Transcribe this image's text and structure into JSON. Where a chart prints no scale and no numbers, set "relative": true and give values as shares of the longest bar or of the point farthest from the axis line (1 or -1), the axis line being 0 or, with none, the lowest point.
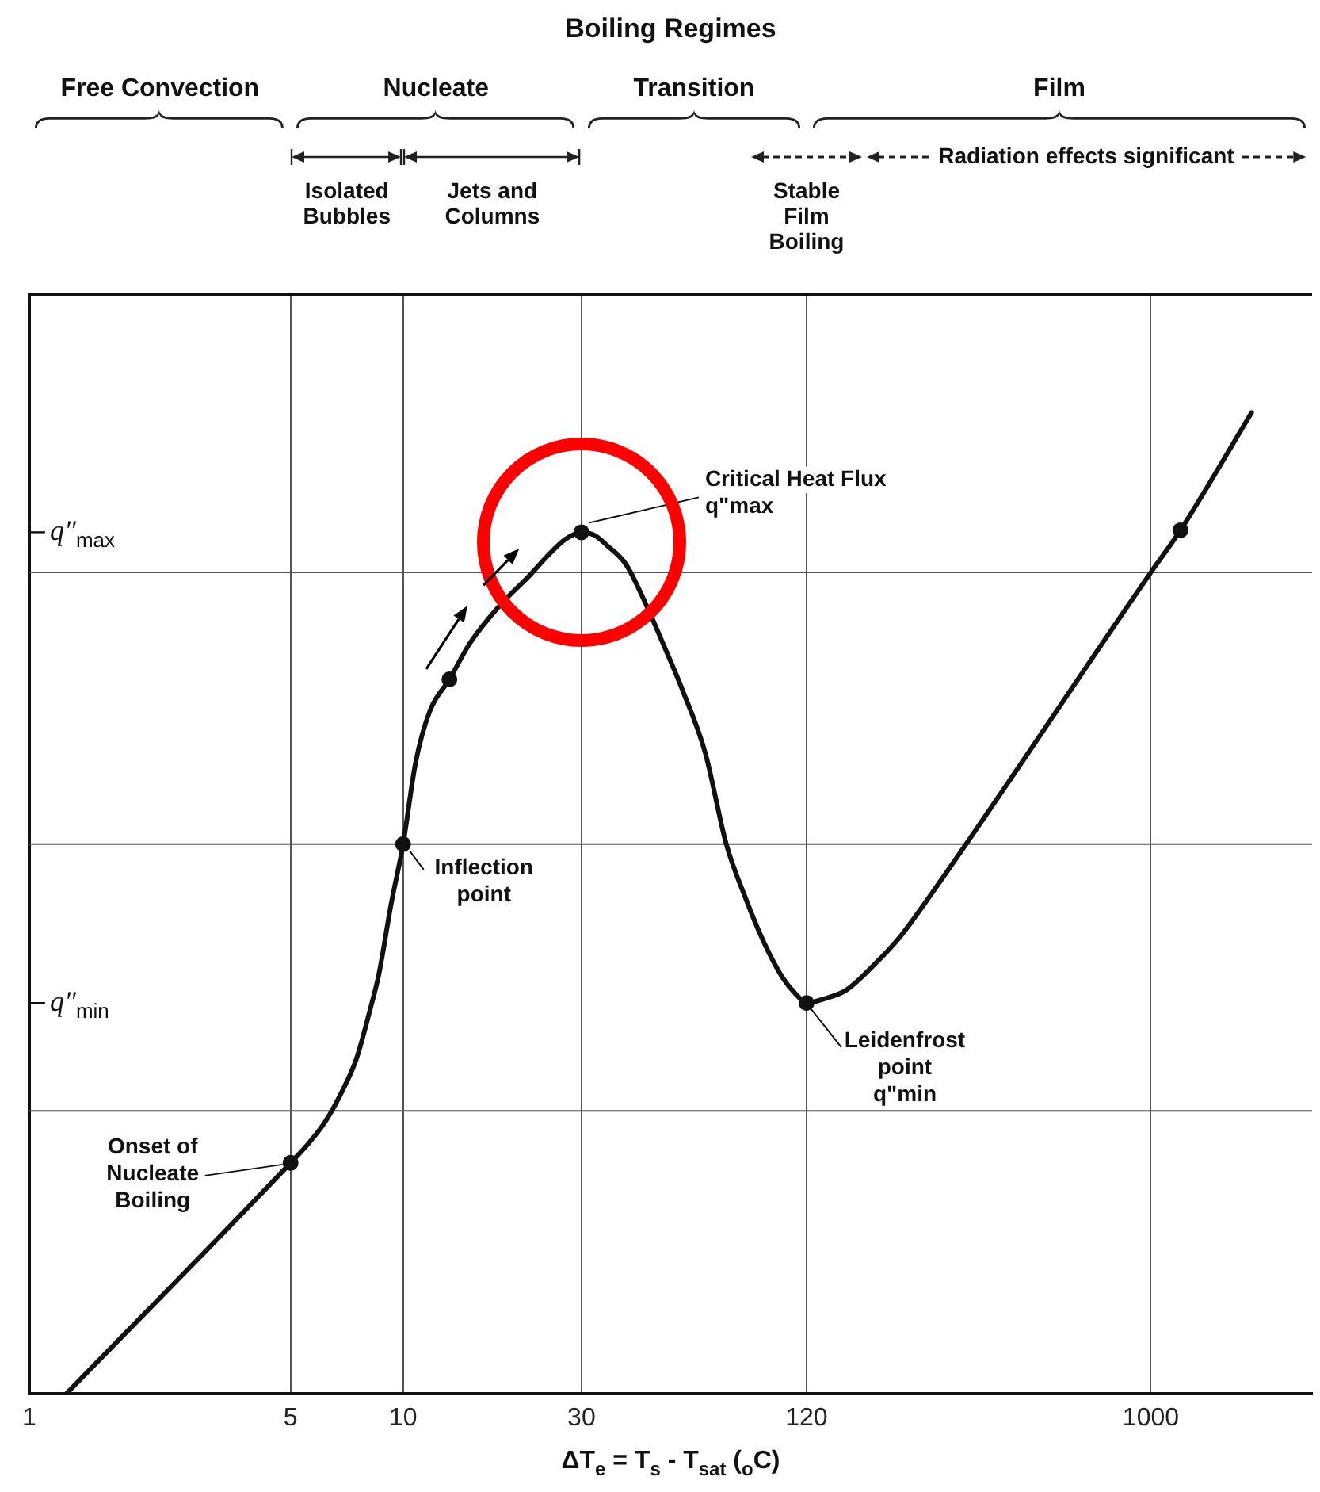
{
  "chart_data": {
    "type": "line",
    "title": "Boiling Regimes",
    "xlabel": "ΔT$_{e}$ = T$_{s}$ - T$_{sat}$ ($_{o}$C)",
    "relative": true,
    "log": "x",
    "xlim": [
      1,
      2700
    ],
    "xticks": [
      1,
      5,
      10,
      30,
      120,
      1000
    ],
    "grid": "x",
    "series": [
      {
        "color": "#111111",
        "marker": "none",
        "x": [
          1.26,
          5,
          5.56,
          6.19,
          6.89,
          7.5,
          8.17,
          8.61,
          9.29,
          10,
          10.8,
          11.8,
          13.3,
          15.1,
          18.1,
          21.8,
          24.5,
          27.2,
          30,
          32.5,
          35,
          39.5,
          44.2,
          49.5,
          55.9,
          64.3,
          73.2,
          82.6,
          92.5,
          103.5,
          113,
          120,
          133,
          153,
          182,
          214,
          250,
          1000,
          1200,
          1860
        ],
        "values": [
          0,
          0.235,
          0.254,
          0.277,
          0.309,
          0.341,
          0.392,
          0.427,
          0.499,
          0.56,
          0.643,
          0.696,
          0.728,
          0.765,
          0.803,
          0.834,
          0.855,
          0.871,
          0.878,
          0.875,
          0.865,
          0.845,
          0.808,
          0.765,
          0.717,
          0.653,
          0.56,
          0.504,
          0.459,
          0.424,
          0.406,
          0.398,
          0.402,
          0.411,
          0.437,
          0.466,
          0.501,
          0.837,
          0.88,
          1
        ]
      },
      {
        "type": "scatter",
        "color": "#111111",
        "marker": "circle",
        "x": [
          5,
          10,
          13.3,
          30,
          120,
          1200
        ],
        "values": [
          0.235,
          0.56,
          0.728,
          0.878,
          0.398,
          0.88
        ]
      }
    ],
    "ref_lines": [
      {
        "axis": "y",
        "value": 0.288,
        "color": "#555555"
      },
      {
        "axis": "y",
        "value": 0.56,
        "color": "#555555"
      },
      {
        "axis": "y",
        "value": 0.837,
        "color": "#555555"
      }
    ],
    "annotations": [
      "Free Convection",
      "Nucleate",
      "Transition",
      "Film",
      "Isolated\nBubbles",
      "Jets and\nColumns",
      "Stable\nFilm\nBoiling",
      "Radiation effects significant",
      "q″$_{max}$",
      "q″$_{min}$",
      {
        "text": "Critical Heat Flux\nq\"max",
        "x": 30,
        "y": 0.878
      },
      {
        "text": "Inflection\npoint",
        "x": 10,
        "y": 0.56
      },
      {
        "text": "Onset of\nNucleate\nBoiling",
        "x": 5,
        "y": 0.235
      },
      {
        "text": "Leidenfrost\npoint\nq\"min",
        "x": 120,
        "y": 0.398
      }
    ]
  }
}
